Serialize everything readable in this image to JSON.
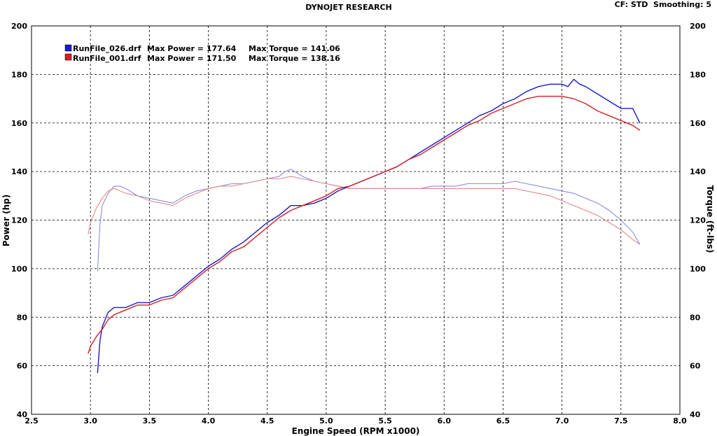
{
  "header": {
    "title": "DYNOJET RESEARCH",
    "settings": "CF: STD  Smoothing: 5"
  },
  "chart_data": {
    "type": "line",
    "title": "DYNOJET RESEARCH",
    "xlabel": "Engine Speed (RPM x1000)",
    "ylabel": "Power (hp)",
    "y2label": "Torque (ft-lbs)",
    "xlim": [
      2.5,
      8.0
    ],
    "ylim": [
      40,
      200
    ],
    "y2lim": [
      40,
      200
    ],
    "x_ticks": [
      "2.5",
      "3.0",
      "3.5",
      "4.0",
      "4.5",
      "5.0",
      "5.5",
      "6.0",
      "6.5",
      "7.0",
      "7.5",
      "8.0"
    ],
    "y_ticks": [
      "40",
      "60",
      "80",
      "100",
      "120",
      "140",
      "160",
      "180",
      "200"
    ],
    "y2_ticks": [
      "40",
      "60",
      "80",
      "100",
      "120",
      "140",
      "160",
      "180",
      "200"
    ],
    "grid": true,
    "legend": [
      {
        "file": "RunFile_026.drf",
        "power_text": "Max Power = 177.64",
        "torque_text": "Max Torque = 141.06",
        "color": "#1a1acc"
      },
      {
        "file": "RunFile_001.drf",
        "power_text": "Max Power = 171.50",
        "torque_text": "Max Torque = 138.16",
        "color": "#d42020"
      }
    ],
    "series": [
      {
        "name": "RunFile_026.drf",
        "measure": "power",
        "color": "#1a1acc",
        "x": [
          3.06,
          3.08,
          3.1,
          3.15,
          3.2,
          3.3,
          3.4,
          3.5,
          3.6,
          3.7,
          3.8,
          3.9,
          4.0,
          4.1,
          4.2,
          4.3,
          4.4,
          4.5,
          4.6,
          4.7,
          4.8,
          4.9,
          5.0,
          5.1,
          5.2,
          5.3,
          5.4,
          5.5,
          5.6,
          5.7,
          5.8,
          5.9,
          6.0,
          6.1,
          6.2,
          6.3,
          6.4,
          6.5,
          6.6,
          6.7,
          6.8,
          6.9,
          7.0,
          7.05,
          7.1,
          7.15,
          7.2,
          7.3,
          7.4,
          7.5,
          7.6,
          7.66
        ],
        "values": [
          57,
          70,
          76,
          82,
          84,
          84,
          86,
          86,
          88,
          89,
          93,
          97,
          101,
          104,
          108,
          111,
          115,
          119,
          122,
          126,
          126,
          127,
          129,
          132,
          134,
          136,
          138,
          140,
          142,
          145,
          148,
          151,
          154,
          157,
          160,
          163,
          165,
          168,
          170,
          173,
          175,
          176,
          176,
          175,
          178,
          176,
          175,
          172,
          169,
          166,
          166,
          160
        ]
      },
      {
        "name": "RunFile_001.drf",
        "measure": "power",
        "color": "#d42020",
        "x": [
          2.98,
          3.0,
          3.05,
          3.1,
          3.15,
          3.2,
          3.3,
          3.4,
          3.5,
          3.6,
          3.7,
          3.8,
          3.9,
          4.0,
          4.1,
          4.2,
          4.3,
          4.4,
          4.5,
          4.6,
          4.7,
          4.8,
          4.9,
          5.0,
          5.1,
          5.2,
          5.3,
          5.4,
          5.5,
          5.6,
          5.7,
          5.8,
          5.9,
          6.0,
          6.1,
          6.2,
          6.3,
          6.4,
          6.5,
          6.6,
          6.7,
          6.8,
          6.9,
          7.0,
          7.1,
          7.2,
          7.3,
          7.4,
          7.5,
          7.6,
          7.66
        ],
        "values": [
          65,
          68,
          72,
          75,
          79,
          81,
          83,
          85,
          85,
          87,
          88,
          92,
          96,
          100,
          103,
          107,
          109,
          113,
          117,
          121,
          124,
          126,
          128,
          130,
          133,
          134,
          136,
          138,
          140,
          142,
          145,
          147,
          150,
          153,
          156,
          159,
          161,
          164,
          166,
          168,
          170,
          171,
          171,
          171,
          170,
          168,
          165,
          163,
          161,
          159,
          157
        ]
      },
      {
        "name": "RunFile_026.drf",
        "measure": "torque",
        "color": "#8a8ae0",
        "x": [
          3.06,
          3.08,
          3.1,
          3.15,
          3.2,
          3.25,
          3.3,
          3.4,
          3.5,
          3.6,
          3.7,
          3.8,
          3.9,
          4.0,
          4.1,
          4.2,
          4.3,
          4.4,
          4.5,
          4.6,
          4.65,
          4.7,
          4.8,
          4.9,
          5.0,
          5.1,
          5.2,
          5.3,
          5.4,
          5.5,
          5.6,
          5.7,
          5.8,
          5.9,
          6.0,
          6.1,
          6.2,
          6.3,
          6.4,
          6.5,
          6.6,
          6.7,
          6.8,
          6.9,
          7.0,
          7.1,
          7.2,
          7.3,
          7.4,
          7.5,
          7.6,
          7.66
        ],
        "values": [
          99,
          118,
          126,
          131,
          134,
          134,
          133,
          130,
          129,
          128,
          127,
          130,
          132,
          133,
          134,
          135,
          135,
          136,
          137,
          138,
          140,
          141,
          138,
          136,
          135,
          134,
          133,
          133,
          133,
          133,
          133,
          133,
          133,
          134,
          134,
          134,
          135,
          135,
          135,
          135,
          136,
          135,
          134,
          133,
          132,
          131,
          129,
          127,
          124,
          120,
          115,
          110
        ]
      },
      {
        "name": "RunFile_001.drf",
        "measure": "torque",
        "color": "#e08a8a",
        "x": [
          2.98,
          3.0,
          3.05,
          3.1,
          3.15,
          3.2,
          3.3,
          3.4,
          3.5,
          3.6,
          3.7,
          3.8,
          3.9,
          4.0,
          4.1,
          4.2,
          4.3,
          4.4,
          4.5,
          4.6,
          4.7,
          4.8,
          4.9,
          5.0,
          5.1,
          5.2,
          5.3,
          5.4,
          5.5,
          5.6,
          5.7,
          5.8,
          5.9,
          6.0,
          6.1,
          6.2,
          6.3,
          6.4,
          6.5,
          6.6,
          6.7,
          6.8,
          6.9,
          7.0,
          7.1,
          7.2,
          7.3,
          7.4,
          7.5,
          7.6,
          7.66
        ],
        "values": [
          114,
          119,
          125,
          129,
          132,
          133,
          131,
          130,
          128,
          127,
          126,
          129,
          131,
          133,
          134,
          134,
          135,
          136,
          137,
          137,
          138,
          137,
          136,
          135,
          134,
          133,
          133,
          133,
          133,
          133,
          133,
          133,
          133,
          133,
          133,
          133,
          133,
          133,
          133,
          133,
          132,
          131,
          130,
          128,
          126,
          124,
          122,
          119,
          116,
          112,
          110
        ]
      }
    ]
  }
}
